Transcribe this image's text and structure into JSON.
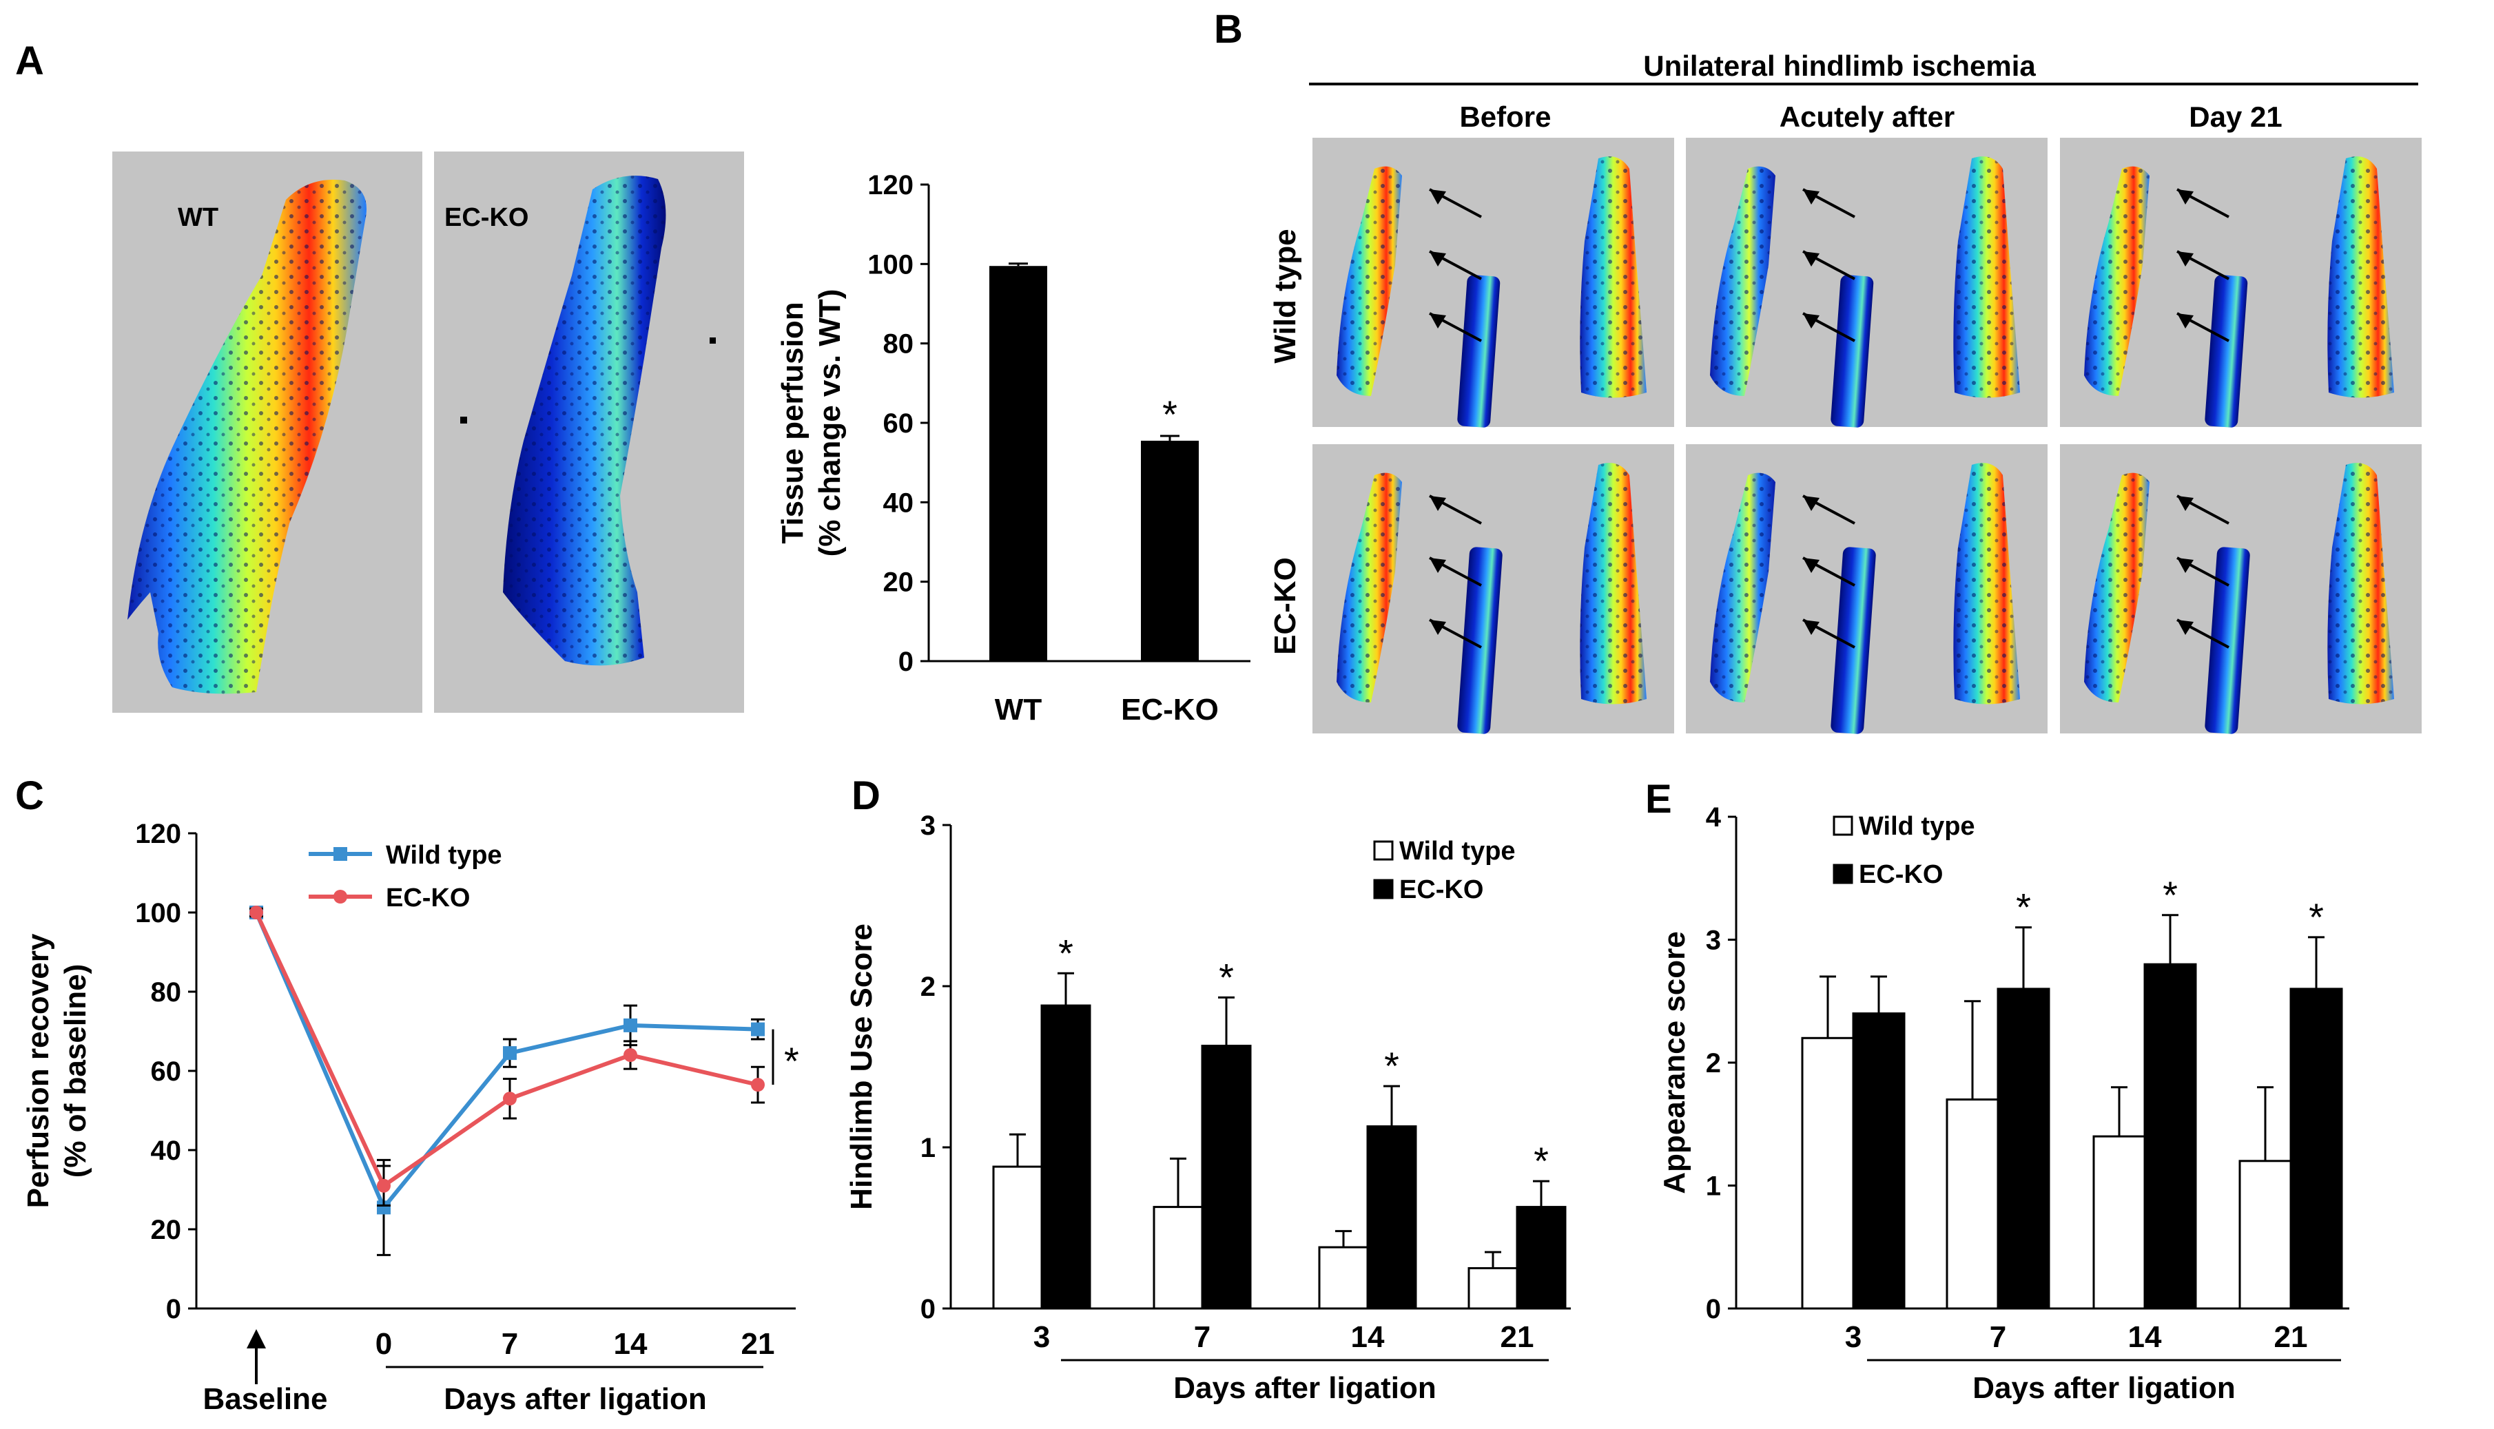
{
  "panels": {
    "A": {
      "label": "A",
      "images": [
        {
          "label": "WT",
          "level": 1.0
        },
        {
          "label": "EC-KO",
          "level": 0.35
        }
      ]
    },
    "B": {
      "label": "B",
      "header": "Unilateral hindlimb ischemia",
      "columns": [
        "Before",
        "Acutely after",
        "Day 21"
      ],
      "rows": [
        "Wild type",
        "EC-KO"
      ]
    },
    "C": {
      "label": "C",
      "baseline_label": "Baseline"
    },
    "D": {
      "label": "D"
    },
    "E": {
      "label": "E"
    }
  },
  "chart_data": [
    {
      "id": "A",
      "type": "bar",
      "categories": [
        "WT",
        "EC-KO"
      ],
      "values": [
        99.5,
        55.5
      ],
      "errors": [
        0.6,
        1.2
      ],
      "significant": [
        false,
        true
      ],
      "ylabel_line1": "Tissue perfusion",
      "ylabel_line2": "(% change vs. WT)",
      "ylim": [
        0,
        120
      ],
      "yticks": [
        0,
        20,
        40,
        60,
        80,
        100,
        120
      ],
      "bar_color": "#000000"
    },
    {
      "id": "C",
      "type": "line",
      "x": [
        "Baseline",
        "0",
        "7",
        "14",
        "21"
      ],
      "xticks": [
        "0",
        "7",
        "14",
        "21"
      ],
      "series": [
        {
          "name": "Wild type",
          "color": "#3a8fd0",
          "marker": "square",
          "values": [
            100,
            25.5,
            64.5,
            71.5,
            70.5
          ],
          "errors": [
            1,
            12,
            3.5,
            5,
            2.5
          ]
        },
        {
          "name": "EC-KO",
          "color": "#e8555a",
          "marker": "circle",
          "values": [
            100,
            31,
            53,
            64,
            56.5
          ],
          "errors": [
            1,
            5,
            5,
            3.5,
            4.5
          ]
        }
      ],
      "ylabel_line1": "Perfusion recovery",
      "ylabel_line2": "(% of baseline)",
      "xlabel": "Days after ligation",
      "ylim": [
        0,
        120
      ],
      "yticks": [
        0,
        20,
        40,
        60,
        80,
        100,
        120
      ],
      "significance": "*"
    },
    {
      "id": "D",
      "type": "bar",
      "categories": [
        "3",
        "7",
        "14",
        "21"
      ],
      "series": [
        {
          "name": "Wild type",
          "fill": "#ffffff",
          "values": [
            0.88,
            0.63,
            0.38,
            0.25
          ],
          "errors": [
            0.2,
            0.3,
            0.1,
            0.1
          ]
        },
        {
          "name": "EC-KO",
          "fill": "#000000",
          "values": [
            1.88,
            1.63,
            1.13,
            0.63
          ],
          "errors": [
            0.2,
            0.3,
            0.25,
            0.16
          ]
        }
      ],
      "significant": [
        true,
        true,
        true,
        true
      ],
      "ylabel": "Hindlimb Use  Score",
      "xlabel": "Days after ligation",
      "ylim": [
        0,
        3
      ],
      "yticks": [
        0,
        1,
        2,
        3
      ]
    },
    {
      "id": "E",
      "type": "bar",
      "categories": [
        "3",
        "7",
        "14",
        "21"
      ],
      "series": [
        {
          "name": "Wild type",
          "fill": "#ffffff",
          "values": [
            2.2,
            1.7,
            1.4,
            1.2
          ],
          "errors": [
            0.5,
            0.8,
            0.4,
            0.6
          ]
        },
        {
          "name": "EC-KO",
          "fill": "#000000",
          "values": [
            2.4,
            2.6,
            2.8,
            2.6
          ],
          "errors": [
            0.3,
            0.5,
            0.4,
            0.42
          ]
        }
      ],
      "significant": [
        false,
        true,
        true,
        true
      ],
      "ylabel": "Appearance score",
      "xlabel": "Days after ligation",
      "ylim": [
        0,
        4
      ],
      "yticks": [
        0,
        1,
        2,
        3,
        4
      ]
    }
  ]
}
